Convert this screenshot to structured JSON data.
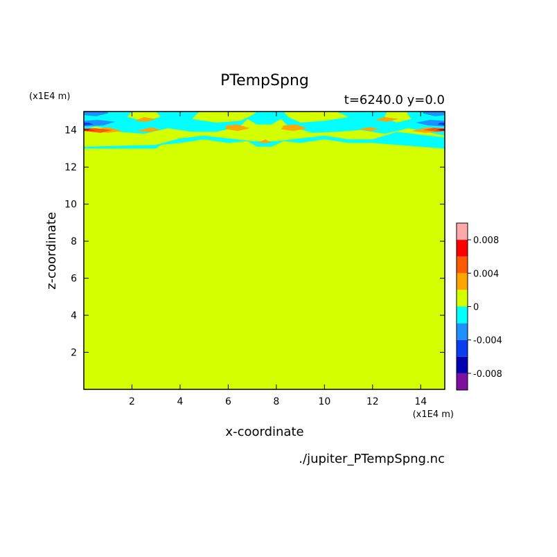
{
  "chart_data": {
    "type": "heatmap",
    "title": "PTempSpng",
    "time_label": "t=6240.0 y=0.0",
    "xlabel": "x-coordinate",
    "ylabel": "z-coordinate",
    "x_unit": "(x1E4 m)",
    "y_unit": "(x1E4 m)",
    "source_file": "./jupiter_PTempSpng.nc",
    "xlim": [
      0,
      15
    ],
    "ylim": [
      0,
      15
    ],
    "x_ticks": [
      2,
      4,
      6,
      8,
      10,
      12,
      14
    ],
    "y_ticks": [
      2,
      4,
      6,
      8,
      10,
      12,
      14
    ],
    "background_value": 0,
    "colorbar": {
      "levels": [
        -0.01,
        -0.008,
        -0.006,
        -0.004,
        -0.002,
        0,
        0.002,
        0.004,
        0.006,
        0.008,
        0.01
      ],
      "colors": [
        "#7f0fa0",
        "#0000b0",
        "#0a3cf0",
        "#1e90ff",
        "#00ffff",
        "#d4ff00",
        "#ffa500",
        "#ff5a00",
        "#ff0000",
        "#ffaaaa"
      ],
      "tick_values": [
        0.008,
        0.004,
        0,
        -0.004,
        -0.008
      ],
      "tick_labels": [
        "0.008",
        "0.004",
        "0",
        "-0.004",
        "-0.008"
      ]
    },
    "regions": [
      {
        "value": -0.002,
        "points": [
          [
            0,
            13
          ],
          [
            3,
            13
          ],
          [
            3.2,
            13.2
          ],
          [
            4,
            13.3
          ],
          [
            5,
            13.5
          ],
          [
            6,
            13.3
          ],
          [
            6.8,
            13.4
          ],
          [
            7.2,
            13.1
          ],
          [
            7.8,
            13.1
          ],
          [
            8.3,
            13.4
          ],
          [
            9,
            13.3
          ],
          [
            10,
            13.5
          ],
          [
            11,
            13.3
          ],
          [
            12,
            13.3
          ],
          [
            15,
            13
          ],
          [
            15,
            15
          ],
          [
            0,
            15
          ]
        ]
      },
      {
        "value": 0,
        "points": [
          [
            0,
            13.1
          ],
          [
            3,
            13.2
          ],
          [
            4,
            13.55
          ],
          [
            5,
            13.7
          ],
          [
            6,
            13.55
          ],
          [
            7,
            13.4
          ],
          [
            8,
            13.4
          ],
          [
            9,
            13.55
          ],
          [
            10,
            13.7
          ],
          [
            11,
            13.5
          ],
          [
            12,
            13.5
          ],
          [
            13,
            13.9
          ],
          [
            15,
            13.6
          ],
          [
            15,
            13.7
          ],
          [
            13.5,
            14.1
          ],
          [
            12.5,
            13.8
          ],
          [
            11.5,
            14
          ],
          [
            10.5,
            13.9
          ],
          [
            9.5,
            13.85
          ],
          [
            8.5,
            14.2
          ],
          [
            8.2,
            14.6
          ],
          [
            7.8,
            14.3
          ],
          [
            7.2,
            14.3
          ],
          [
            6.8,
            14.6
          ],
          [
            6.5,
            14.2
          ],
          [
            5.5,
            13.9
          ],
          [
            4.5,
            13.9
          ],
          [
            3.5,
            14.1
          ],
          [
            2.5,
            13.8
          ],
          [
            1.5,
            13.9
          ],
          [
            0.5,
            14.2
          ],
          [
            0,
            14
          ]
        ]
      },
      {
        "value": 0,
        "points": [
          [
            4.5,
            14.6
          ],
          [
            5.5,
            14.4
          ],
          [
            6.5,
            14.5
          ],
          [
            7,
            14.8
          ],
          [
            7.2,
            15
          ],
          [
            4.8,
            15
          ]
        ]
      },
      {
        "value": 0,
        "points": [
          [
            8.5,
            14.7
          ],
          [
            9,
            14.4
          ],
          [
            10,
            14.5
          ],
          [
            11,
            14.7
          ],
          [
            10.5,
            15
          ],
          [
            8.3,
            15
          ]
        ]
      },
      {
        "value": 0,
        "points": [
          [
            1.8,
            14.7
          ],
          [
            2.5,
            14.5
          ],
          [
            3.2,
            14.7
          ],
          [
            3,
            15
          ],
          [
            2,
            15
          ]
        ]
      },
      {
        "value": 0,
        "points": [
          [
            12.5,
            14.7
          ],
          [
            13,
            14.4
          ],
          [
            13.6,
            14.6
          ],
          [
            13.4,
            15
          ],
          [
            12.6,
            15
          ]
        ]
      },
      {
        "value": 0.002,
        "points": [
          [
            5.9,
            14.05
          ],
          [
            6.4,
            13.95
          ],
          [
            6.9,
            14.1
          ],
          [
            6.4,
            14.3
          ],
          [
            5.9,
            14.25
          ]
        ]
      },
      {
        "value": 0.002,
        "points": [
          [
            8.2,
            14.05
          ],
          [
            8.7,
            13.95
          ],
          [
            9.3,
            14.1
          ],
          [
            8.8,
            14.3
          ],
          [
            8.3,
            14.25
          ]
        ]
      },
      {
        "value": 0.002,
        "points": [
          [
            2.2,
            13.95
          ],
          [
            2.7,
            13.9
          ],
          [
            3.2,
            14
          ],
          [
            2.8,
            14.15
          ]
        ]
      },
      {
        "value": 0.002,
        "points": [
          [
            11.4,
            14.05
          ],
          [
            11.9,
            13.95
          ],
          [
            12.3,
            14.05
          ],
          [
            11.9,
            14.15
          ]
        ]
      },
      {
        "value": 0.002,
        "points": [
          [
            7.2,
            13.3
          ],
          [
            7.55,
            13.5
          ],
          [
            7.8,
            13.3
          ]
        ]
      },
      {
        "value": 0.002,
        "points": [
          [
            2.1,
            14.5
          ],
          [
            2.6,
            14.45
          ],
          [
            3,
            14.6
          ],
          [
            2.5,
            14.7
          ]
        ]
      },
      {
        "value": 0.002,
        "points": [
          [
            12.1,
            14.55
          ],
          [
            12.6,
            14.45
          ],
          [
            13.1,
            14.6
          ],
          [
            12.5,
            14.7
          ]
        ]
      },
      {
        "value": 0.002,
        "points": [
          [
            0.3,
            14.0
          ],
          [
            1,
            13.85
          ],
          [
            1.6,
            13.95
          ],
          [
            1,
            14.15
          ]
        ]
      },
      {
        "value": 0.002,
        "points": [
          [
            13.6,
            13.95
          ],
          [
            14.2,
            13.85
          ],
          [
            15,
            13.95
          ],
          [
            14.3,
            14.15
          ]
        ]
      },
      {
        "value": 0.004,
        "points": [
          [
            0,
            13.95
          ],
          [
            0.7,
            13.85
          ],
          [
            1.2,
            14.0
          ],
          [
            0.5,
            14.1
          ],
          [
            0,
            14.1
          ]
        ]
      },
      {
        "value": 0.004,
        "points": [
          [
            14.1,
            14.0
          ],
          [
            14.7,
            13.9
          ],
          [
            15,
            13.95
          ],
          [
            15,
            14.1
          ],
          [
            14.5,
            14.12
          ]
        ]
      },
      {
        "value": 0.006,
        "points": [
          [
            0,
            14.0
          ],
          [
            0.5,
            13.95
          ],
          [
            0.2,
            14.06
          ],
          [
            0,
            14.06
          ]
        ]
      },
      {
        "value": 0.006,
        "points": [
          [
            14.6,
            13.98
          ],
          [
            15,
            13.97
          ],
          [
            15,
            14.06
          ],
          [
            14.8,
            14.06
          ]
        ]
      },
      {
        "value": -0.004,
        "points": [
          [
            0,
            14.2
          ],
          [
            0.8,
            14.25
          ],
          [
            1.3,
            14.45
          ],
          [
            0.6,
            14.55
          ],
          [
            0,
            14.5
          ]
        ]
      },
      {
        "value": -0.004,
        "points": [
          [
            13.8,
            14.4
          ],
          [
            14.3,
            14.25
          ],
          [
            15,
            14.2
          ],
          [
            15,
            14.5
          ],
          [
            14.4,
            14.55
          ]
        ]
      },
      {
        "value": -0.004,
        "points": [
          [
            0,
            14.8
          ],
          [
            0.5,
            14.75
          ],
          [
            1,
            14.9
          ],
          [
            1,
            15
          ],
          [
            0,
            15
          ]
        ]
      },
      {
        "value": -0.004,
        "points": [
          [
            14.1,
            14.9
          ],
          [
            14.6,
            14.75
          ],
          [
            15,
            14.8
          ],
          [
            15,
            15
          ],
          [
            14.1,
            15
          ]
        ]
      },
      {
        "value": -0.006,
        "points": [
          [
            0,
            14.25
          ],
          [
            0.4,
            14.3
          ],
          [
            0.2,
            14.4
          ],
          [
            0,
            14.4
          ]
        ]
      },
      {
        "value": -0.006,
        "points": [
          [
            14.7,
            14.3
          ],
          [
            15,
            14.25
          ],
          [
            15,
            14.4
          ],
          [
            14.8,
            14.4
          ]
        ]
      }
    ]
  }
}
